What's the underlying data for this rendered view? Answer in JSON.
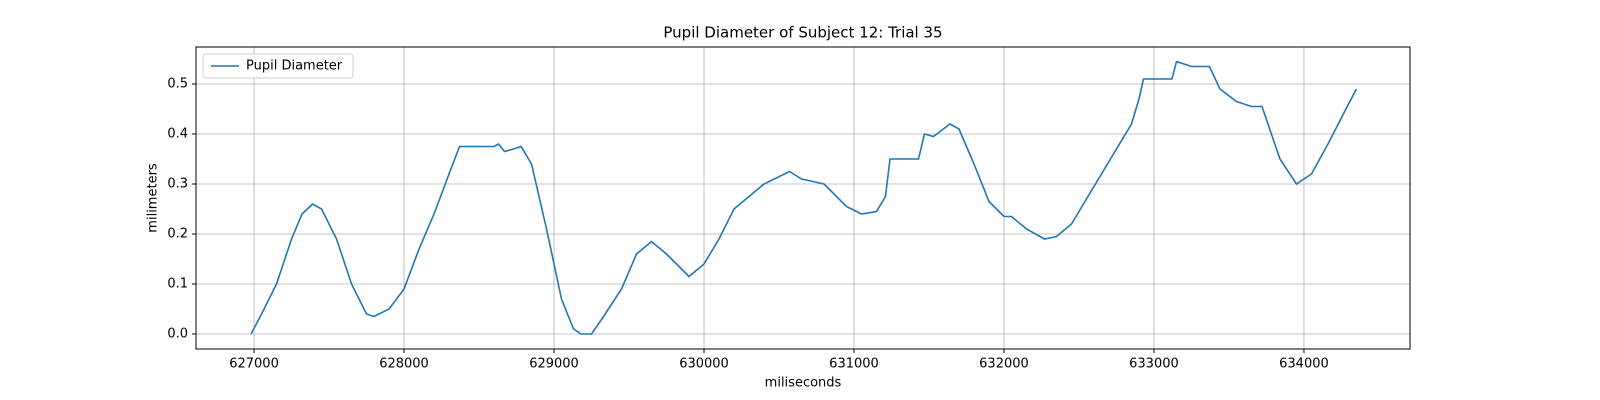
{
  "chart_data": {
    "type": "line",
    "title": "Pupil Diameter of Subject 12: Trial 35",
    "x_label": "miliseconds",
    "y_label": "milimeters",
    "x": [
      626980,
      627050,
      627150,
      627250,
      627320,
      627390,
      627450,
      627550,
      627650,
      627750,
      627800,
      627900,
      628000,
      628100,
      628200,
      628300,
      628370,
      628600,
      628630,
      628670,
      628730,
      628780,
      628850,
      628950,
      629050,
      629130,
      629180,
      629250,
      629330,
      629450,
      629550,
      629650,
      629750,
      629850,
      629900,
      630000,
      630100,
      630200,
      630300,
      630400,
      630570,
      630650,
      630800,
      630950,
      631050,
      631150,
      631210,
      631240,
      631430,
      631470,
      631530,
      631640,
      631700,
      631800,
      631900,
      632000,
      632050,
      632150,
      632270,
      632350,
      632450,
      632550,
      632650,
      632750,
      632850,
      632900,
      632930,
      633120,
      633150,
      633250,
      633370,
      633440,
      633550,
      633650,
      633720,
      633840,
      633950,
      634050,
      634160,
      634280,
      634350
    ],
    "series": [
      {
        "name": "Pupil Diameter",
        "color": "#1f77b4",
        "values": [
          0,
          0.04,
          0.1,
          0.19,
          0.24,
          0.26,
          0.25,
          0.19,
          0.1,
          0.04,
          0.035,
          0.05,
          0.09,
          0.17,
          0.24,
          0.32,
          0.375,
          0.375,
          0.38,
          0.365,
          0.37,
          0.375,
          0.34,
          0.21,
          0.07,
          0.01,
          0.0,
          0.0,
          0.035,
          0.09,
          0.16,
          0.185,
          0.16,
          0.13,
          0.115,
          0.14,
          0.19,
          0.25,
          0.275,
          0.3,
          0.325,
          0.31,
          0.3,
          0.255,
          0.24,
          0.245,
          0.275,
          0.35,
          0.35,
          0.4,
          0.395,
          0.42,
          0.41,
          0.34,
          0.265,
          0.235,
          0.235,
          0.21,
          0.19,
          0.195,
          0.22,
          0.27,
          0.32,
          0.37,
          0.42,
          0.47,
          0.51,
          0.51,
          0.545,
          0.535,
          0.535,
          0.49,
          0.465,
          0.455,
          0.455,
          0.35,
          0.3,
          0.32,
          0.38,
          0.45,
          0.49
        ]
      }
    ],
    "xlim": [
      626613,
      634707
    ],
    "ylim": [
      -0.03,
      0.574
    ],
    "xticks": [
      627000,
      628000,
      629000,
      630000,
      631000,
      632000,
      633000,
      634000
    ],
    "yticks": [
      {
        "value": 0,
        "label": "0.0"
      },
      0.1,
      0.2,
      0.3,
      0.4,
      0.5
    ],
    "grid": true,
    "legend": "upper left"
  }
}
